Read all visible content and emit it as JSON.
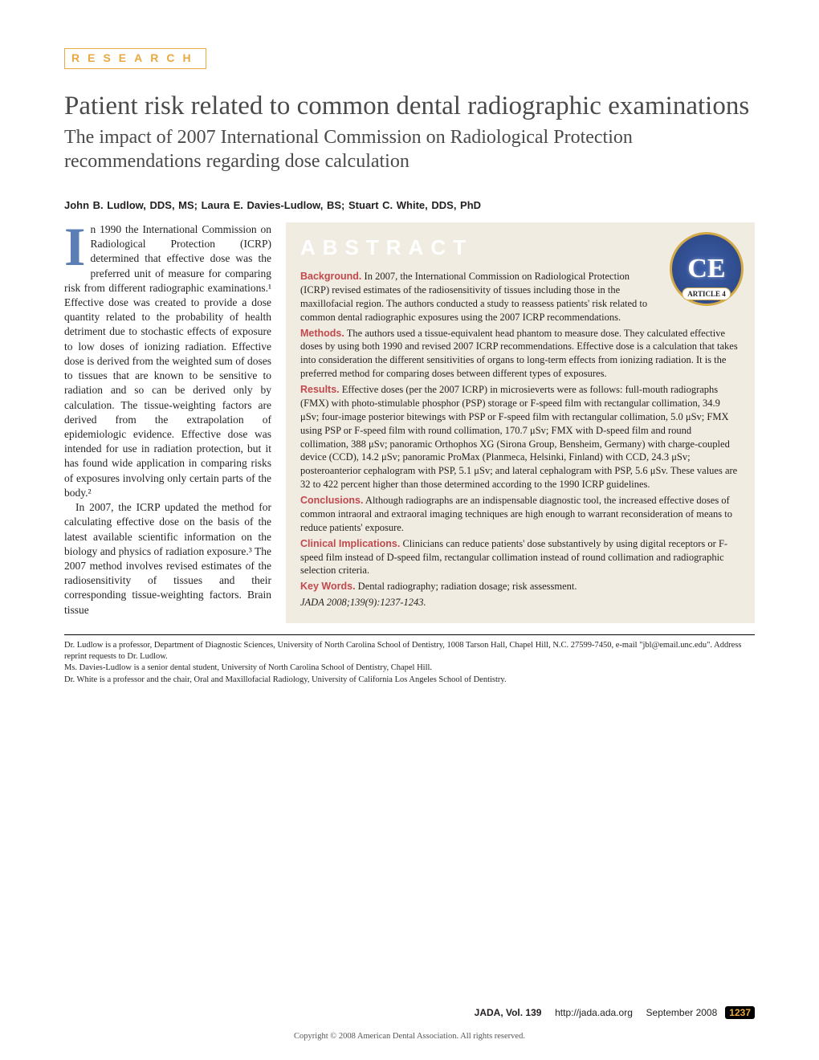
{
  "section_label": "RESEARCH",
  "title": "Patient risk related to common dental radiographic examinations",
  "subtitle": "The impact of 2007 International Commission on Radiological Protection recommendations regarding dose calculation",
  "authors": "John B. Ludlow, DDS, MS; Laura E. Davies-Ludlow, BS; Stuart C. White, DDS, PhD",
  "body": {
    "dropcap": "I",
    "p1": "n 1990 the International Commission on Radiological Protection (ICRP) determined that effective dose was the preferred unit of measure for comparing risk from different radiographic examinations.¹ Effective dose was created to provide a dose quantity related to the probability of health detriment due to stochastic effects of exposure to low doses of ionizing radiation. Effective dose is derived from the weighted sum of doses to tissues that are known to be sensitive to radiation and so can be derived only by calculation. The tissue-weighting factors are derived from the extrapolation of epidemiologic evidence. Effective dose was intended for use in radiation protection, but it has found wide application in comparing risks of exposures involving only certain parts of the body.²",
    "p2": "In 2007, the ICRP updated the method for calculating effective dose on the basis of the latest available scientific information on the biology and physics of radiation exposure.³ The 2007 method involves revised estimates of the radiosensitivity of tissues and their corresponding tissue-weighting factors. Brain tissue"
  },
  "abstract": {
    "header": "ABSTRACT",
    "badge_text": "CE",
    "badge_ribbon": "ARTICLE 4",
    "sections": {
      "background_head": "Background.",
      "background": " In 2007, the International Commission on Radiological Protection (ICRP) revised estimates of the radiosensitivity of tissues including those in the maxillofacial region. The authors conducted a study to reassess patients' risk related to common dental radiographic exposures using the 2007 ICRP recommendations.",
      "methods_head": "Methods.",
      "methods": " The authors used a tissue-equivalent head phantom to measure dose. They calculated effective doses by using both 1990 and revised 2007 ICRP recommendations. Effective dose is a calculation that takes into consideration the different sensitivities of organs to long-term effects from ionizing radiation. It is the preferred method for comparing doses between different types of exposures.",
      "results_head": "Results.",
      "results": " Effective doses (per the 2007 ICRP) in microsieverts were as follows: full-mouth radiographs (FMX) with photo-stimulable phosphor (PSP) storage or F-speed film with rectangular collimation, 34.9 μSv; four-image posterior bitewings with PSP or F-speed film with rectangular collimation, 5.0 μSv; FMX using PSP or F-speed film with round collimation, 170.7 μSv; FMX with D-speed film and round collimation, 388 μSv; panoramic Orthophos XG (Sirona Group, Bensheim, Germany) with charge-coupled device (CCD), 14.2 μSv; panoramic ProMax (Planmeca, Helsinki, Finland) with CCD, 24.3 μSv; posteroanterior cephalogram with PSP, 5.1 μSv; and lateral cephalogram with PSP, 5.6 μSv. These values are 32 to 422 percent higher than those determined according to the 1990 ICRP guidelines.",
      "conclusions_head": "Conclusions.",
      "conclusions": " Although radiographs are an indispensable diagnostic tool, the increased effective doses of common intraoral and extraoral imaging techniques are high enough to warrant reconsideration of means to reduce patients' exposure.",
      "clinical_head": "Clinical Implications.",
      "clinical": " Clinicians can reduce patients' dose substantively by using digital receptors or F-speed film instead of D-speed film, rectangular collimation instead of round collimation and radiographic selection criteria.",
      "keywords_head": "Key Words.",
      "keywords": " Dental radiography; radiation dosage; risk assessment.",
      "citation": "JADA 2008;139(9):1237-1243."
    }
  },
  "affiliations": {
    "a1": "Dr. Ludlow is a professor, Department of Diagnostic Sciences, University of North Carolina School of Dentistry, 1008 Tarson Hall, Chapel Hill, N.C. 27599-7450, e-mail \"jbl@email.unc.edu\". Address reprint requests to Dr. Ludlow.",
    "a2": "Ms. Davies-Ludlow is a senior dental student, University of North Carolina School of Dentistry, Chapel Hill.",
    "a3": "Dr. White is a professor and the chair, Oral and Maxillofacial Radiology, University of California Los Angeles School of Dentistry."
  },
  "footer": {
    "journal": "JADA, Vol. 139",
    "url": "http://jada.ada.org",
    "date": "September 2008",
    "page": "1237"
  },
  "copyright": "Copyright © 2008 American Dental Association. All rights reserved.",
  "colors": {
    "accent_orange": "#e8a940",
    "accent_red": "#c1494e",
    "accent_blue": "#5b7fb5",
    "abstract_bg": "#f0ece1",
    "title_gray": "#4a4a4a"
  }
}
